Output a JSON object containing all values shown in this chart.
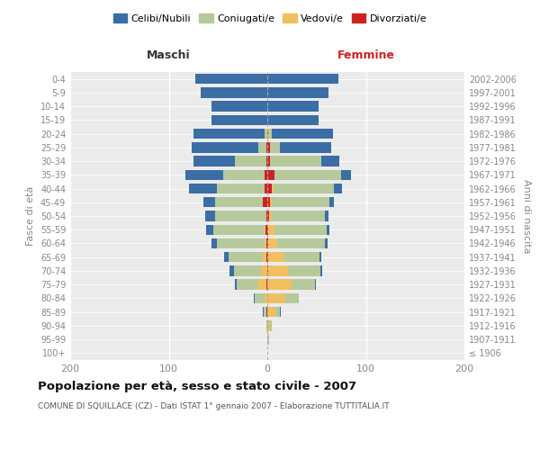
{
  "age_groups": [
    "100+",
    "95-99",
    "90-94",
    "85-89",
    "80-84",
    "75-79",
    "70-74",
    "65-69",
    "60-64",
    "55-59",
    "50-54",
    "45-49",
    "40-44",
    "35-39",
    "30-34",
    "25-29",
    "20-24",
    "15-19",
    "10-14",
    "5-9",
    "0-4"
  ],
  "birth_years": [
    "≤ 1906",
    "1907-1911",
    "1912-1916",
    "1917-1921",
    "1922-1926",
    "1927-1931",
    "1932-1936",
    "1937-1941",
    "1942-1946",
    "1947-1951",
    "1952-1956",
    "1957-1961",
    "1962-1966",
    "1967-1971",
    "1972-1976",
    "1977-1981",
    "1982-1986",
    "1987-1991",
    "1992-1996",
    "1997-2001",
    "2002-2006"
  ],
  "colors": {
    "celibe": "#3a6ea5",
    "coniugato": "#b5c99a",
    "vedovo": "#f0c060",
    "divorziato": "#cc2222"
  },
  "maschi": {
    "celibe": [
      0,
      0,
      0,
      1,
      1,
      2,
      4,
      5,
      6,
      7,
      10,
      12,
      28,
      38,
      42,
      68,
      72,
      57,
      57,
      68,
      73
    ],
    "coniugato": [
      0,
      0,
      1,
      3,
      10,
      22,
      28,
      34,
      48,
      52,
      52,
      48,
      48,
      42,
      32,
      8,
      2,
      0,
      0,
      0,
      0
    ],
    "vedovo": [
      0,
      0,
      0,
      0,
      3,
      8,
      6,
      4,
      2,
      1,
      0,
      0,
      0,
      0,
      0,
      0,
      1,
      0,
      0,
      0,
      0
    ],
    "divorziato": [
      0,
      0,
      0,
      1,
      0,
      1,
      0,
      1,
      1,
      2,
      1,
      5,
      3,
      3,
      1,
      1,
      0,
      0,
      0,
      0,
      0
    ]
  },
  "femmine": {
    "nubile": [
      0,
      0,
      0,
      1,
      0,
      1,
      2,
      2,
      3,
      3,
      4,
      5,
      8,
      10,
      18,
      52,
      62,
      52,
      52,
      62,
      72
    ],
    "coniugata": [
      0,
      1,
      2,
      5,
      14,
      23,
      33,
      36,
      48,
      53,
      53,
      58,
      62,
      68,
      52,
      10,
      4,
      0,
      0,
      0,
      0
    ],
    "vedova": [
      0,
      1,
      3,
      8,
      18,
      25,
      20,
      16,
      9,
      6,
      3,
      2,
      1,
      0,
      0,
      0,
      0,
      0,
      0,
      0,
      0
    ],
    "divorziata": [
      0,
      0,
      0,
      0,
      0,
      0,
      1,
      1,
      1,
      1,
      2,
      3,
      5,
      7,
      3,
      3,
      1,
      0,
      0,
      0,
      0
    ]
  },
  "xlim": 200,
  "title": "Popolazione per età, sesso e stato civile - 2007",
  "subtitle": "COMUNE DI SQUILLACE (CZ) - Dati ISTAT 1° gennaio 2007 - Elaborazione TUTTITALIA.IT",
  "ylabel_left": "Fasce di età",
  "ylabel_right": "Anni di nascita",
  "xlabel_maschi": "Maschi",
  "xlabel_femmine": "Femmine",
  "legend_labels": [
    "Celibi/Nubili",
    "Coniugati/e",
    "Vedovi/e",
    "Divorziati/e"
  ],
  "bg_plot": "#ebebeb",
  "bg_fig": "#ffffff",
  "tick_color": "#888888",
  "grid_color": "#ffffff",
  "spine_color": "#cccccc"
}
